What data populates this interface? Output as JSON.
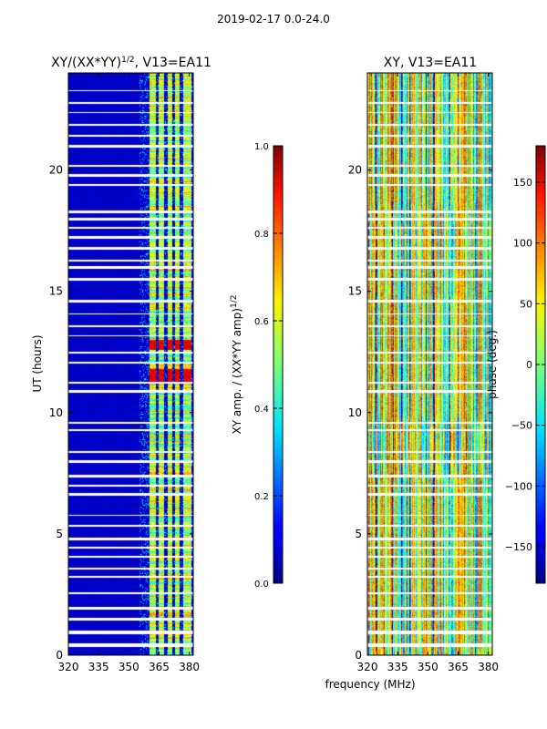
{
  "suptitle": "2019-02-17 0.0-24.0",
  "chart_data": [
    {
      "type": "heatmap",
      "title_base": "XY/(XX*YY)",
      "title_sup": "1/2",
      "title_suffix": ", V13=EA11",
      "xlabel": "",
      "ylabel": "UT (hours)",
      "xlim": [
        320,
        382
      ],
      "ylim": [
        0,
        24
      ],
      "xticks": [
        320,
        335,
        350,
        365,
        380
      ],
      "yticks": [
        0,
        5,
        10,
        15,
        20
      ],
      "colorbar": {
        "label_base": "XY amp. / (XX*YY amp)",
        "label_sup": "1/2",
        "range": [
          0.0,
          1.0
        ],
        "ticks": [
          "0.0",
          "0.2",
          "0.4",
          "0.6",
          "0.8",
          "1.0"
        ],
        "tick_values": [
          0.0,
          0.2,
          0.4,
          0.6,
          0.8,
          1.0
        ]
      },
      "features": {
        "background_value": 0.05,
        "bright_channels_mhz": [
          [
            360,
            363
          ],
          [
            364.5,
            367.5
          ],
          [
            369,
            371.5
          ],
          [
            372.5,
            375
          ],
          [
            377,
            381
          ]
        ],
        "high_value_hours": [
          [
            11.2,
            11.8
          ],
          [
            12.6,
            13.0
          ]
        ],
        "high_value": 0.95
      }
    },
    {
      "type": "heatmap",
      "title": "XY, V13=EA11",
      "xlabel": "frequency (MHz)",
      "ylabel": "",
      "xlim": [
        320,
        382
      ],
      "ylim": [
        0,
        24
      ],
      "xticks": [
        320,
        335,
        350,
        365,
        380
      ],
      "yticks": [
        0,
        5,
        10,
        15,
        20
      ],
      "colorbar": {
        "label": "phase (deg.)",
        "range": [
          -180,
          180
        ],
        "ticks": [
          "−150",
          "−100",
          "−50",
          "0",
          "50",
          "100",
          "150"
        ],
        "tick_values": [
          -150,
          -100,
          -50,
          0,
          50,
          100,
          150
        ]
      },
      "features": {
        "value_range_deg": [
          -180,
          180
        ],
        "pattern": "noisy phase with vertical frequency stripes"
      }
    }
  ],
  "flagged_hours": [
    [
      0.35,
      0.5
    ],
    [
      0.9,
      1.05
    ],
    [
      1.45,
      1.55
    ],
    [
      1.9,
      2.0
    ],
    [
      2.55,
      2.62
    ],
    [
      3.2,
      3.28
    ],
    [
      3.55,
      3.62
    ],
    [
      4.05,
      4.12
    ],
    [
      4.4,
      4.47
    ],
    [
      4.75,
      4.85
    ],
    [
      5.3,
      5.38
    ],
    [
      5.75,
      5.82
    ],
    [
      6.6,
      6.7
    ],
    [
      6.95,
      7.05
    ],
    [
      7.35,
      7.45
    ],
    [
      7.95,
      8.05
    ],
    [
      8.35,
      8.42
    ],
    [
      9.25,
      9.35
    ],
    [
      9.55,
      9.62
    ],
    [
      10.85,
      10.95
    ],
    [
      11.2,
      11.27
    ],
    [
      12.05,
      12.12
    ],
    [
      12.45,
      12.52
    ],
    [
      13.15,
      13.22
    ],
    [
      13.55,
      13.62
    ],
    [
      14.05,
      14.12
    ],
    [
      14.55,
      14.65
    ],
    [
      15.45,
      15.55
    ],
    [
      15.95,
      16.05
    ],
    [
      16.25,
      16.32
    ],
    [
      16.75,
      16.85
    ],
    [
      17.2,
      17.28
    ],
    [
      17.6,
      17.67
    ],
    [
      17.95,
      18.05
    ],
    [
      18.25,
      18.35
    ],
    [
      19.35,
      19.42
    ],
    [
      19.75,
      19.85
    ],
    [
      20.15,
      20.22
    ],
    [
      20.95,
      21.05
    ],
    [
      21.4,
      21.47
    ],
    [
      21.85,
      21.92
    ],
    [
      22.35,
      22.42
    ],
    [
      22.75,
      22.82
    ],
    [
      23.25,
      23.32
    ]
  ]
}
